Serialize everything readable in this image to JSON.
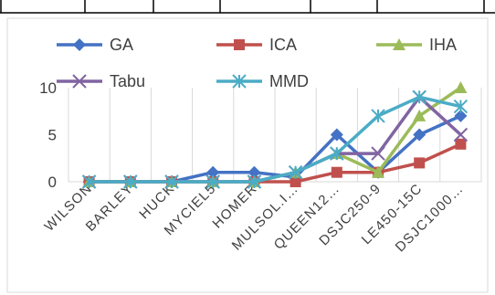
{
  "chart_data": {
    "type": "line",
    "title": "",
    "xlabel": "",
    "ylabel": "",
    "categories": [
      "WILSON",
      "BARLEY",
      "HUCK",
      "MYCIEL5",
      "HOMER",
      "MULSOL.I…",
      "QUEEN12…",
      "DSJC250-9",
      "LE450-15C",
      "DSJC1000…"
    ],
    "ylim": [
      0,
      10
    ],
    "yticks": [
      0,
      5,
      10
    ],
    "grid": "vertical",
    "legend_position": "top",
    "series": [
      {
        "name": "GA",
        "color": "#4472C4",
        "marker": "diamond",
        "values": [
          0,
          0,
          0,
          1,
          1,
          0.5,
          5,
          1,
          5,
          7
        ]
      },
      {
        "name": "ICA",
        "color": "#C0504D",
        "marker": "square",
        "values": [
          0,
          0,
          0,
          0,
          0,
          0,
          1,
          1,
          2,
          4
        ]
      },
      {
        "name": "IHA",
        "color": "#9BBB59",
        "marker": "triangle",
        "values": [
          0,
          0,
          0,
          0,
          0,
          1,
          3,
          1,
          7,
          10
        ]
      },
      {
        "name": "Tabu",
        "color": "#8064A2",
        "marker": "x",
        "values": [
          0,
          0,
          0,
          0,
          0,
          1,
          3,
          3,
          9,
          5
        ]
      },
      {
        "name": "MMD",
        "color": "#4BACC6",
        "marker": "star",
        "values": [
          0,
          0,
          0,
          0,
          0,
          1,
          3,
          7,
          9,
          8
        ]
      }
    ]
  }
}
